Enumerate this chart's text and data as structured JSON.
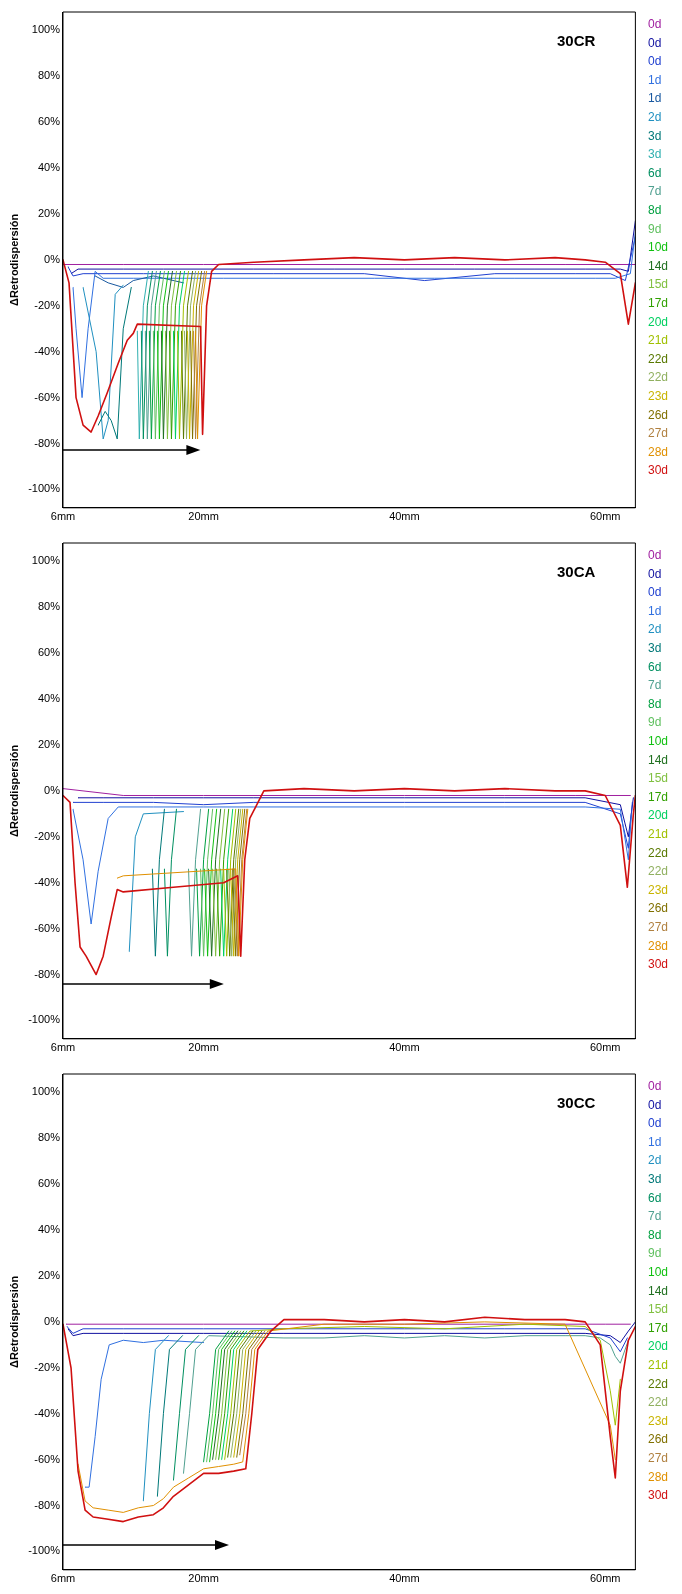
{
  "chart_data": [
    {
      "type": "line",
      "title": "30CR",
      "ylabel": "ΔRetrodispersión",
      "xlim": [
        6,
        63
      ],
      "ylim": [
        -108,
        108
      ],
      "xticks": [
        {
          "value": 6,
          "label": "6mm"
        },
        {
          "value": 20,
          "label": "20mm"
        },
        {
          "value": 40,
          "label": "40mm"
        },
        {
          "value": 60,
          "label": "60mm"
        }
      ],
      "yticks": [
        {
          "value": -100,
          "label": "-100%"
        },
        {
          "value": -80,
          "label": "-80%"
        },
        {
          "value": -60,
          "label": "-60%"
        },
        {
          "value": -40,
          "label": "-40%"
        },
        {
          "value": -20,
          "label": "-20%"
        },
        {
          "value": 0,
          "label": "0%"
        },
        {
          "value": 20,
          "label": "20%"
        },
        {
          "value": 40,
          "label": "40%"
        },
        {
          "value": 60,
          "label": "60%"
        },
        {
          "value": 80,
          "label": "80%"
        },
        {
          "value": 100,
          "label": "100%"
        }
      ],
      "legend": "right",
      "marker": "none",
      "line_style": "solid",
      "series": [
        {
          "name": "0d",
          "color": "#a020a0",
          "x": [
            6,
            12,
            20,
            30,
            45,
            56,
            63
          ],
          "values": [
            -2,
            -2,
            -2,
            -2,
            -2,
            -2,
            -2
          ]
        },
        {
          "name": "0d",
          "color": "#1010a0",
          "x": [
            6.8,
            7.5,
            12,
            16,
            25,
            33,
            40,
            47,
            53,
            58,
            61.5,
            62.3,
            63
          ],
          "values": [
            -6,
            -4,
            -4,
            -4,
            -4,
            -4,
            -4,
            -4,
            -4,
            -4,
            -4,
            -5,
            17
          ]
        },
        {
          "name": "0d",
          "color": "#2040d0",
          "x": [
            6.5,
            7,
            8,
            14,
            18,
            27,
            36,
            42,
            49,
            57,
            60.5,
            62,
            63
          ],
          "values": [
            -3,
            -7,
            -6,
            -6,
            -6,
            -6,
            -6,
            -9,
            -6,
            -6,
            -6,
            -9,
            10
          ]
        },
        {
          "name": "1d",
          "color": "#3070e0",
          "x": [
            7,
            7.3,
            7.9,
            8.5,
            9.2,
            10,
            13,
            17,
            22,
            28,
            37,
            43,
            51,
            59,
            61,
            62.5,
            63
          ],
          "values": [
            -12,
            -30,
            -60,
            -30,
            -5,
            -8,
            -8,
            -8,
            -8,
            -8,
            -8,
            -8,
            -8,
            -8,
            -8,
            -6,
            12
          ]
        },
        {
          "name": "1d",
          "color": "#1858a0",
          "x": [
            9.2,
            10.5,
            12,
            13,
            15,
            18
          ],
          "values": [
            -7,
            -10,
            -12,
            -9,
            -7,
            -10
          ]
        },
        {
          "name": "2d",
          "color": "#2090c0",
          "x": [
            8,
            9.3,
            10,
            10.5,
            11.2,
            12
          ],
          "values": [
            -12,
            -40,
            -78,
            -70,
            -15,
            -11
          ]
        },
        {
          "name": "3d",
          "color": "#007878",
          "x": [
            9.5,
            10.2,
            10.8,
            11.4,
            12,
            12.8
          ],
          "values": [
            -72,
            -66,
            -70,
            -78,
            -30,
            -12
          ]
        },
        {
          "name": "3d",
          "color": "#30b0b0",
          "x": [
            13.4,
            13.6,
            14,
            14.5
          ],
          "values": [
            -31,
            -78,
            -20,
            -5
          ]
        },
        {
          "name": "6d",
          "color": "#008f60",
          "x": [
            13.8,
            14,
            14.4,
            14.9
          ],
          "values": [
            -31,
            -78,
            -20,
            -5
          ]
        },
        {
          "name": "7d",
          "color": "#50a090",
          "x": [
            14.2,
            14.4,
            14.8,
            15.3
          ],
          "values": [
            -31,
            -78,
            -20,
            -5
          ]
        },
        {
          "name": "8d",
          "color": "#00a040",
          "x": [
            14.6,
            14.8,
            15.2,
            15.7
          ],
          "values": [
            -31,
            -78,
            -20,
            -5
          ]
        },
        {
          "name": "9d",
          "color": "#60c060",
          "x": [
            15,
            15.2,
            15.6,
            16.1
          ],
          "values": [
            -31,
            -78,
            -20,
            -5
          ]
        },
        {
          "name": "10d",
          "color": "#10c010",
          "x": [
            15.4,
            15.6,
            16,
            16.5
          ],
          "values": [
            -31,
            -78,
            -20,
            -5
          ]
        },
        {
          "name": "14d",
          "color": "#207020",
          "x": [
            15.8,
            16,
            16.4,
            16.9
          ],
          "values": [
            -31,
            -78,
            -20,
            -5
          ]
        },
        {
          "name": "15d",
          "color": "#80c040",
          "x": [
            16.2,
            16.4,
            16.8,
            17.3
          ],
          "values": [
            -31,
            -78,
            -20,
            -5
          ]
        },
        {
          "name": "17d",
          "color": "#30a000",
          "x": [
            16.6,
            16.8,
            17.2,
            17.7
          ],
          "values": [
            -31,
            -78,
            -20,
            -5
          ]
        },
        {
          "name": "20d",
          "color": "#00d060",
          "x": [
            17,
            17.2,
            17.6,
            18.1
          ],
          "values": [
            -31,
            -78,
            -20,
            -5
          ]
        },
        {
          "name": "21d",
          "color": "#a0c000",
          "x": [
            17.4,
            17.6,
            18,
            18.5
          ],
          "values": [
            -31,
            -78,
            -20,
            -5
          ]
        },
        {
          "name": "22d",
          "color": "#587800",
          "x": [
            17.8,
            18,
            18.4,
            18.9
          ],
          "values": [
            -31,
            -78,
            -20,
            -5
          ]
        },
        {
          "name": "22d",
          "color": "#90b060",
          "x": [
            18.1,
            18.3,
            18.7,
            19.2
          ],
          "values": [
            -31,
            -78,
            -20,
            -5
          ]
        },
        {
          "name": "23d",
          "color": "#c8b400",
          "x": [
            18.4,
            18.6,
            19,
            19.5
          ],
          "values": [
            -31,
            -78,
            -20,
            -5
          ]
        },
        {
          "name": "26d",
          "color": "#807000",
          "x": [
            18.7,
            18.9,
            19.3,
            19.8
          ],
          "values": [
            -31,
            -78,
            -20,
            -5
          ]
        },
        {
          "name": "27d",
          "color": "#b08040",
          "x": [
            19,
            19.2,
            19.6,
            20.1
          ],
          "values": [
            -31,
            -78,
            -20,
            -5
          ]
        },
        {
          "name": "28d",
          "color": "#e09000",
          "x": [
            19.2,
            19.4,
            19.8,
            20.3
          ],
          "values": [
            -31,
            -78,
            -20,
            -5
          ]
        },
        {
          "name": "30d",
          "color": "#d01010",
          "x": [
            6,
            6.6,
            7.3,
            8,
            8.8,
            9.5,
            10.4,
            11.5,
            12.4,
            13,
            13.4,
            19.7,
            19.9,
            20.3,
            20.8,
            21.5,
            25,
            30,
            35,
            40,
            45,
            50,
            55,
            58,
            60,
            61.5,
            62.3,
            63
          ],
          "values": [
            0,
            -10,
            -60,
            -72,
            -75,
            -68,
            -58,
            -45,
            -35,
            -32,
            -28,
            -29,
            -76,
            -20,
            -5,
            -2,
            -1,
            0,
            1,
            0,
            1,
            0,
            1,
            0,
            -1,
            -6,
            -28,
            -10
          ]
        }
      ]
    },
    {
      "type": "line",
      "title": "30CA",
      "ylabel": "ΔRetrodispersión",
      "xlim": [
        6,
        63
      ],
      "ylim": [
        -108,
        108
      ],
      "xticks": [
        {
          "value": 6,
          "label": "6mm"
        },
        {
          "value": 20,
          "label": "20mm"
        },
        {
          "value": 40,
          "label": "40mm"
        },
        {
          "value": 60,
          "label": "60mm"
        }
      ],
      "yticks": [
        {
          "value": -100,
          "label": "-100%"
        },
        {
          "value": -80,
          "label": "-80%"
        },
        {
          "value": -60,
          "label": "-60%"
        },
        {
          "value": -40,
          "label": "-40%"
        },
        {
          "value": -20,
          "label": "-20%"
        },
        {
          "value": 0,
          "label": "0%"
        },
        {
          "value": 20,
          "label": "20%"
        },
        {
          "value": 40,
          "label": "40%"
        },
        {
          "value": 60,
          "label": "60%"
        },
        {
          "value": 80,
          "label": "80%"
        },
        {
          "value": 100,
          "label": "100%"
        }
      ],
      "legend": "right",
      "marker": "none",
      "line_style": "solid",
      "series": [
        {
          "name": "0d",
          "color": "#a020a0",
          "x": [
            6,
            12,
            20,
            30,
            40,
            50,
            57,
            62.5
          ],
          "values": [
            1,
            -2,
            -2,
            -2,
            -2,
            -2,
            -2,
            -2
          ]
        },
        {
          "name": "0d",
          "color": "#1010a0",
          "x": [
            7.5,
            10,
            15,
            20,
            25,
            30,
            40,
            50,
            58,
            61.5,
            62.3,
            62.8
          ],
          "values": [
            -3,
            -3,
            -3,
            -3,
            -3,
            -3,
            -3,
            -3,
            -3,
            -6,
            -20,
            -3
          ]
        },
        {
          "name": "0d",
          "color": "#2040d0",
          "x": [
            7,
            10,
            15,
            20,
            25,
            30,
            40,
            50,
            58,
            61.5,
            62.3,
            62.7
          ],
          "values": [
            -5,
            -5,
            -5,
            -6,
            -5,
            -5,
            -5,
            -5,
            -5,
            -10,
            -25,
            -5
          ]
        },
        {
          "name": "1d",
          "color": "#3070e0",
          "x": [
            7,
            8,
            8.8,
            9.5,
            10.5,
            11.5,
            15,
            20,
            25,
            30,
            40,
            50,
            58,
            61.5,
            62.3,
            62.6
          ],
          "values": [
            -8,
            -30,
            -58,
            -35,
            -12,
            -7,
            -7,
            -7,
            -7,
            -7,
            -7,
            -7,
            -7,
            -8,
            -30,
            -10
          ]
        },
        {
          "name": "2d",
          "color": "#2090c0",
          "x": [
            12.6,
            13.2,
            14,
            18
          ],
          "values": [
            -70,
            -20,
            -10,
            -9
          ]
        },
        {
          "name": "3d",
          "color": "#007878",
          "x": [
            14.9,
            15.2,
            15.6,
            16.1
          ],
          "values": [
            -34,
            -72,
            -30,
            -8
          ]
        },
        {
          "name": "6d",
          "color": "#008f60",
          "x": [
            16.1,
            16.4,
            16.8,
            17.3
          ],
          "values": [
            -34,
            -72,
            -30,
            -8
          ]
        },
        {
          "name": "7d",
          "color": "#50a090",
          "x": [
            18.5,
            18.8,
            19.2,
            19.7
          ],
          "values": [
            -34,
            -72,
            -30,
            -8
          ]
        },
        {
          "name": "8d",
          "color": "#00a040",
          "x": [
            19.3,
            19.6,
            20,
            20.5
          ],
          "values": [
            -34,
            -72,
            -30,
            -8
          ]
        },
        {
          "name": "9d",
          "color": "#60c060",
          "x": [
            19.7,
            20,
            20.4,
            20.9
          ],
          "values": [
            -34,
            -72,
            -30,
            -8
          ]
        },
        {
          "name": "10d",
          "color": "#10c010",
          "x": [
            20.1,
            20.4,
            20.8,
            21.3
          ],
          "values": [
            -34,
            -72,
            -30,
            -8
          ]
        },
        {
          "name": "14d",
          "color": "#207020",
          "x": [
            20.5,
            20.8,
            21.2,
            21.7
          ],
          "values": [
            -34,
            -72,
            -30,
            -8
          ]
        },
        {
          "name": "15d",
          "color": "#80c040",
          "x": [
            20.9,
            21.2,
            21.6,
            22.1
          ],
          "values": [
            -34,
            -72,
            -30,
            -8
          ]
        },
        {
          "name": "17d",
          "color": "#30a000",
          "x": [
            21.3,
            21.6,
            22,
            22.5
          ],
          "values": [
            -34,
            -72,
            -30,
            -8
          ]
        },
        {
          "name": "20d",
          "color": "#00d060",
          "x": [
            21.7,
            22,
            22.4,
            22.9
          ],
          "values": [
            -34,
            -72,
            -30,
            -8
          ]
        },
        {
          "name": "21d",
          "color": "#a0c000",
          "x": [
            22,
            22.3,
            22.7,
            23.2
          ],
          "values": [
            -34,
            -72,
            -30,
            -8
          ]
        },
        {
          "name": "22d",
          "color": "#587800",
          "x": [
            22.3,
            22.6,
            23,
            23.5
          ],
          "values": [
            -34,
            -72,
            -30,
            -8
          ]
        },
        {
          "name": "22d",
          "color": "#90b060",
          "x": [
            22.5,
            22.8,
            23.2,
            23.7
          ],
          "values": [
            -34,
            -72,
            -30,
            -8
          ]
        },
        {
          "name": "23d",
          "color": "#c8b400",
          "x": [
            22.7,
            23,
            23.4,
            23.9
          ],
          "values": [
            -34,
            -72,
            -30,
            -8
          ]
        },
        {
          "name": "26d",
          "color": "#807000",
          "x": [
            22.9,
            23.2,
            23.6,
            24.1
          ],
          "values": [
            -34,
            -72,
            -30,
            -8
          ]
        },
        {
          "name": "27d",
          "color": "#b08040",
          "x": [
            23.1,
            23.4,
            23.8,
            24.3
          ],
          "values": [
            -34,
            -72,
            -30,
            -8
          ]
        },
        {
          "name": "28d",
          "color": "#e09000",
          "x": [
            11.4,
            12,
            23.2,
            23.5,
            23.9,
            24.4
          ],
          "values": [
            -38,
            -37,
            -34,
            -72,
            -30,
            -8
          ]
        },
        {
          "name": "30d",
          "color": "#d01010",
          "x": [
            6,
            6.7,
            7.2,
            7.7,
            8.3,
            9.3,
            10,
            10.8,
            11.4,
            12,
            17,
            22,
            23.4,
            23.7,
            24.1,
            24.6,
            26,
            30,
            35,
            40,
            45,
            50,
            55,
            58,
            60,
            61.5,
            62.2,
            62.8,
            63
          ],
          "values": [
            -2,
            -5,
            -40,
            -68,
            -72,
            -80,
            -72,
            -55,
            -43,
            -44,
            -42,
            -40,
            -37,
            -72,
            -30,
            -12,
            0,
            1,
            0,
            1,
            0,
            1,
            0,
            0,
            -2,
            -15,
            -42,
            -10,
            -2
          ]
        }
      ]
    },
    {
      "type": "line",
      "title": "30CC",
      "ylabel": "ΔRetrodispersión",
      "xlim": [
        6,
        63
      ],
      "ylim": [
        -108,
        108
      ],
      "xticks": [
        {
          "value": 6,
          "label": "6mm"
        },
        {
          "value": 20,
          "label": "20mm"
        },
        {
          "value": 40,
          "label": "40mm"
        },
        {
          "value": 60,
          "label": "60mm"
        }
      ],
      "yticks": [
        {
          "value": -100,
          "label": "-100%"
        },
        {
          "value": -80,
          "label": "-80%"
        },
        {
          "value": -60,
          "label": "-60%"
        },
        {
          "value": -40,
          "label": "-40%"
        },
        {
          "value": -20,
          "label": "-20%"
        },
        {
          "value": 0,
          "label": "0%"
        },
        {
          "value": 20,
          "label": "20%"
        },
        {
          "value": 40,
          "label": "40%"
        },
        {
          "value": 60,
          "label": "60%"
        },
        {
          "value": 80,
          "label": "80%"
        },
        {
          "value": 100,
          "label": "100%"
        }
      ],
      "legend": "right",
      "marker": "none",
      "line_style": "solid",
      "series": [
        {
          "name": "0d",
          "color": "#a020a0",
          "x": [
            6.3,
            20,
            40,
            60,
            62.5
          ],
          "values": [
            -1,
            -1,
            -1,
            -1,
            -1
          ]
        },
        {
          "name": "0d",
          "color": "#1010a0",
          "x": [
            6.5,
            7,
            8,
            12,
            20,
            28,
            40,
            50,
            58,
            60.5,
            61.5,
            62.3,
            63
          ],
          "values": [
            -3,
            -6,
            -5,
            -5,
            -5,
            -5,
            -5,
            -5,
            -5,
            -6,
            -9,
            -4,
            0
          ]
        },
        {
          "name": "0d",
          "color": "#2040d0",
          "x": [
            6.4,
            7,
            8,
            12,
            20,
            28,
            40,
            50,
            58,
            60.5,
            61.5,
            62.2
          ],
          "values": [
            -2,
            -5,
            -3,
            -3,
            -3,
            -3,
            -3,
            -3,
            -3,
            -7,
            -13,
            -7
          ]
        },
        {
          "name": "1d",
          "color": "#3070e0",
          "x": [
            8.2,
            8.6,
            9.2,
            9.8,
            10.6,
            12,
            14,
            16,
            20
          ],
          "values": [
            -72,
            -72,
            -50,
            -25,
            -10,
            -8,
            -9,
            -8,
            -9
          ]
        },
        {
          "name": "2d",
          "color": "#2090c0",
          "x": [
            14,
            14.6,
            15.2,
            16.5
          ],
          "values": [
            -78,
            -40,
            -12,
            -6
          ]
        },
        {
          "name": "3d",
          "color": "#007878",
          "x": [
            15.4,
            16,
            16.6,
            17.9
          ],
          "values": [
            -76,
            -40,
            -12,
            -6
          ]
        },
        {
          "name": "6d",
          "color": "#008f60",
          "x": [
            17,
            17.6,
            18.2,
            19.5
          ],
          "values": [
            -69,
            -40,
            -12,
            -6
          ]
        },
        {
          "name": "7d",
          "color": "#50a090",
          "x": [
            18,
            18.6,
            19.2,
            20.5,
            28,
            32,
            36,
            40,
            44,
            48,
            52,
            56,
            58,
            59.5,
            60.5,
            61,
            61.5,
            62.3
          ],
          "values": [
            -66,
            -40,
            -12,
            -6,
            -7,
            -7,
            -6,
            -7,
            -6,
            -7,
            -6,
            -6,
            -6,
            -7,
            -10,
            -15,
            -18,
            -8
          ]
        },
        {
          "name": "8d",
          "color": "#00a040",
          "x": [
            20,
            20.6,
            21.2,
            22.5
          ],
          "values": [
            -61,
            -40,
            -12,
            -4
          ]
        },
        {
          "name": "9d",
          "color": "#60c060",
          "x": [
            20.3,
            20.9,
            21.5,
            22.8
          ],
          "values": [
            -61,
            -40,
            -12,
            -4
          ]
        },
        {
          "name": "10d",
          "color": "#10c010",
          "x": [
            20.6,
            21.2,
            21.8,
            23.1
          ],
          "values": [
            -61,
            -40,
            -12,
            -4
          ]
        },
        {
          "name": "14d",
          "color": "#207020",
          "x": [
            20.9,
            21.5,
            22.1,
            23.4
          ],
          "values": [
            -60,
            -40,
            -12,
            -4
          ]
        },
        {
          "name": "15d",
          "color": "#80c040",
          "x": [
            21.2,
            21.8,
            22.4,
            23.7
          ],
          "values": [
            -60,
            -40,
            -12,
            -4
          ]
        },
        {
          "name": "17d",
          "color": "#30a000",
          "x": [
            21.5,
            22.1,
            22.7,
            24
          ],
          "values": [
            -60,
            -40,
            -12,
            -4
          ]
        },
        {
          "name": "20d",
          "color": "#00d060",
          "x": [
            21.8,
            22.4,
            23,
            24.3
          ],
          "values": [
            -60,
            -40,
            -12,
            -4
          ]
        },
        {
          "name": "21d",
          "color": "#a0c000",
          "x": [
            22.1,
            22.7,
            23.3,
            24.6,
            28,
            36,
            44,
            52,
            58,
            59.5,
            60.5,
            61,
            61.5
          ],
          "values": [
            -60,
            -40,
            -12,
            -4,
            -3,
            -2,
            -3,
            -1,
            -2,
            -8,
            -30,
            -45,
            -25
          ]
        },
        {
          "name": "22d",
          "color": "#587800",
          "x": [
            22.4,
            23,
            23.6,
            24.9
          ],
          "values": [
            -59,
            -40,
            -12,
            -4
          ]
        },
        {
          "name": "22d",
          "color": "#90b060",
          "x": [
            22.7,
            23.3,
            23.9,
            25.2
          ],
          "values": [
            -59,
            -40,
            -12,
            -4
          ]
        },
        {
          "name": "23d",
          "color": "#c8b400",
          "x": [
            23,
            23.6,
            24.2,
            25.5
          ],
          "values": [
            -59,
            -40,
            -12,
            -4
          ]
        },
        {
          "name": "26d",
          "color": "#807000",
          "x": [
            23.3,
            23.9,
            24.5,
            25.8
          ],
          "values": [
            -59,
            -40,
            -12,
            -4
          ]
        },
        {
          "name": "27d",
          "color": "#b08040",
          "x": [
            23.6,
            24.2,
            24.8,
            26.1
          ],
          "values": [
            -58,
            -40,
            -12,
            -4
          ]
        },
        {
          "name": "28d",
          "color": "#e09000",
          "x": [
            7.5,
            8.2,
            9,
            10.5,
            12,
            13.5,
            15,
            16,
            17,
            18.5,
            20,
            21.5,
            23,
            23.9,
            24.5,
            25.1,
            26.4,
            32,
            40,
            48,
            56,
            60.5,
            61
          ],
          "values": [
            -62,
            -78,
            -81,
            -82,
            -83,
            -81,
            -80,
            -77,
            -72,
            -68,
            -64,
            -63,
            -62,
            -61,
            -40,
            -12,
            -4,
            -1,
            -1,
            0,
            -1,
            -45,
            -60
          ]
        },
        {
          "name": "30d",
          "color": "#d01010",
          "x": [
            6,
            6.8,
            7.5,
            8.2,
            9,
            10.5,
            12,
            13.5,
            15,
            16,
            17,
            18.5,
            20,
            21.5,
            23,
            24.2,
            24.8,
            25.4,
            26.7,
            28,
            32,
            36,
            40,
            44,
            48,
            52,
            56,
            58,
            59.5,
            60.5,
            61,
            61.5,
            62.3,
            63
          ],
          "values": [
            -1,
            -20,
            -65,
            -82,
            -85,
            -86,
            -87,
            -85,
            -84,
            -81,
            -76,
            -71,
            -66,
            -66,
            -65,
            -64,
            -40,
            -12,
            -4,
            1,
            1,
            0,
            1,
            0,
            2,
            1,
            1,
            0,
            -10,
            -50,
            -68,
            -30,
            -8,
            -2
          ]
        }
      ]
    }
  ]
}
